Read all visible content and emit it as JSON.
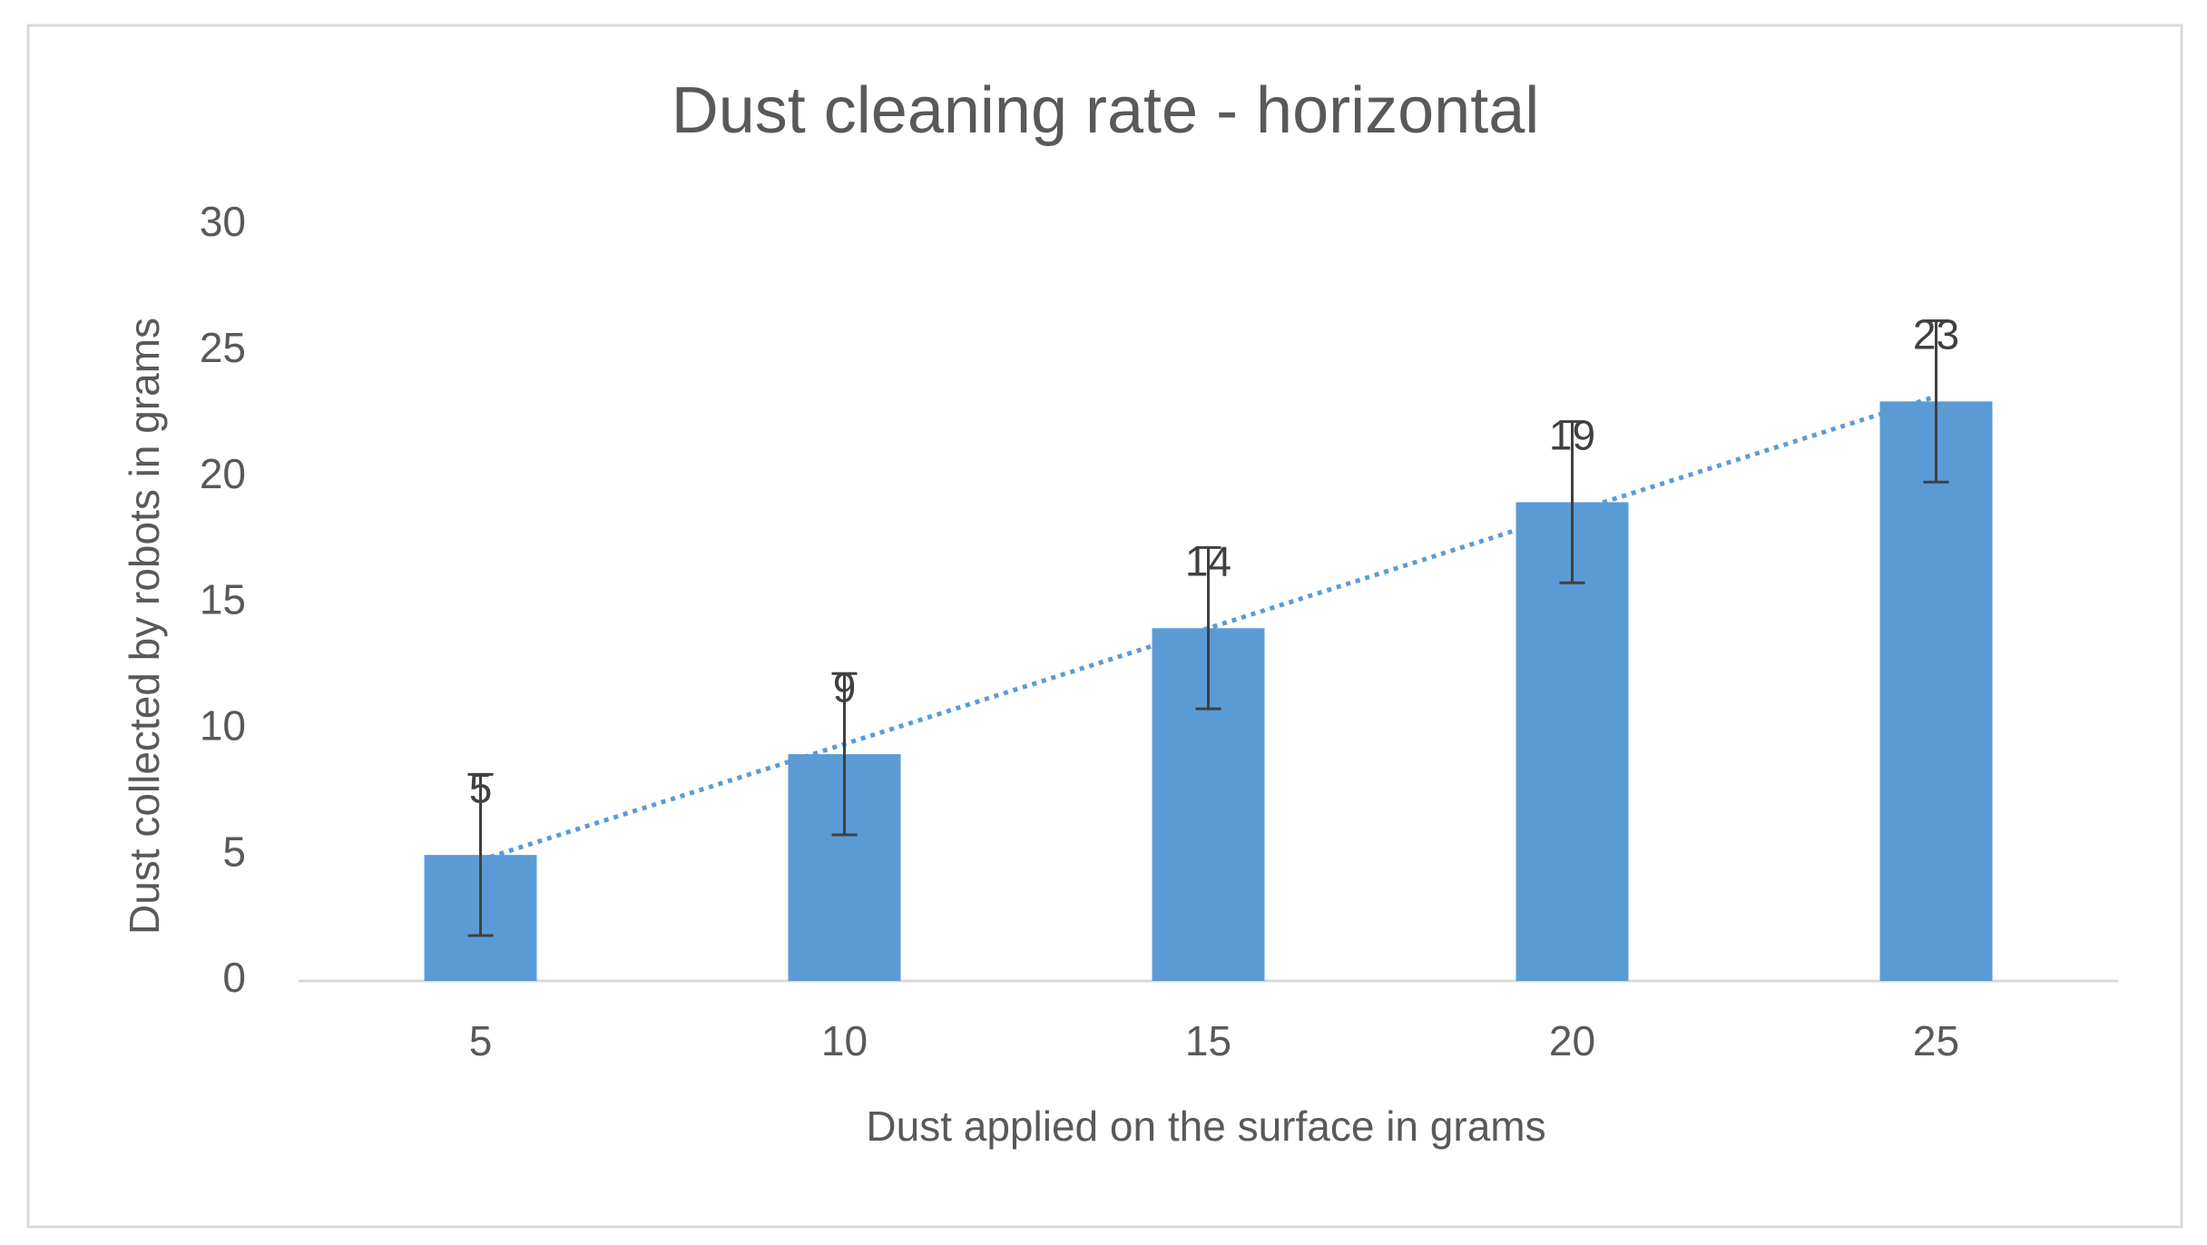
{
  "chart_data": {
    "type": "bar",
    "title": "Dust cleaning rate - horizontal",
    "x_label": "Dust applied on the surface in grams",
    "y_label": "Dust collected by robots in grams",
    "categories": [
      "5",
      "10",
      "15",
      "20",
      "25"
    ],
    "values": [
      5,
      9,
      14,
      19,
      23
    ],
    "errors": [
      3.2,
      3.2,
      3.2,
      3.2,
      3.2
    ],
    "color": "#5b9bd5",
    "error_color": "#404040",
    "trendline": "linear",
    "trendline_color": "#5b9bd5",
    "data_labels": true,
    "ylim": [
      0,
      30
    ],
    "yticks": [
      0,
      5,
      10,
      15,
      20,
      25,
      30
    ],
    "grid": false
  }
}
